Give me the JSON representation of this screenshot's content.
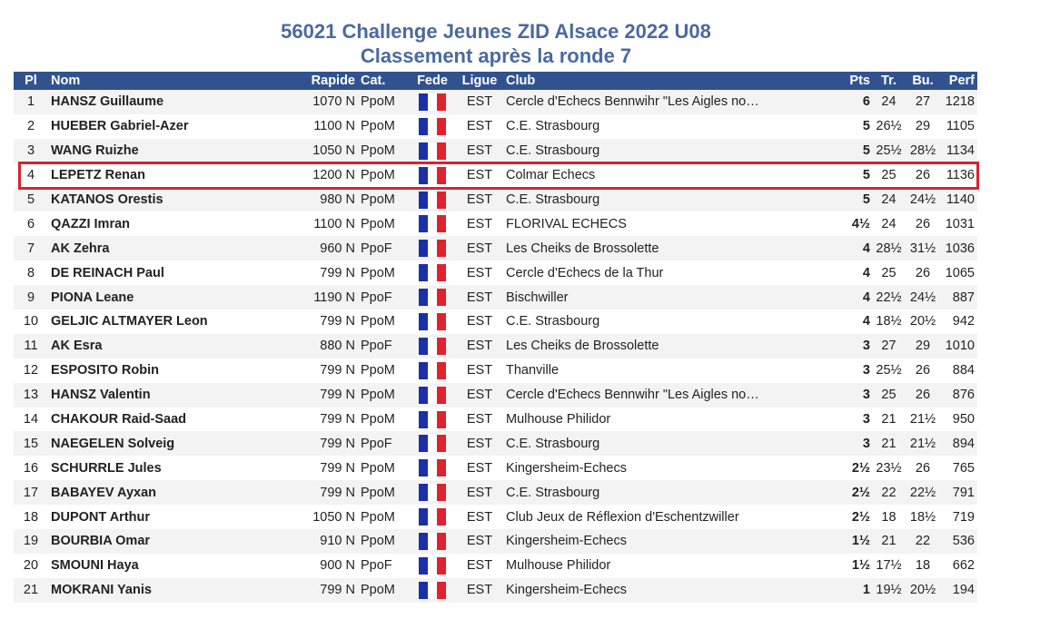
{
  "title_line1": "56021 Challenge Jeunes ZID Alsace 2022 U08",
  "title_line2": "Classement après la ronde 7",
  "headers": {
    "pl": "Pl",
    "nom": "Nom",
    "rapide": "Rapide",
    "cat": "Cat.",
    "fede": "Fede",
    "ligue": "Ligue",
    "club": "Club",
    "pts": "Pts",
    "tr": "Tr.",
    "bu": "Bu.",
    "perf": "Perf"
  },
  "flag_colors": [
    "#1a2fa8",
    "#ffffff",
    "#e0222d"
  ],
  "highlight_color": "#d8232f",
  "highlighted_rank": "4",
  "rows": [
    {
      "pl": "1",
      "nom": "HANSZ Guillaume",
      "rapide": "1070 N",
      "cat": "PpoM",
      "ligue": "EST",
      "club": "Cercle d'Echecs Bennwihr \"Les Aigles no…",
      "pts": "6",
      "tr": "24",
      "bu": "27",
      "perf": "1218"
    },
    {
      "pl": "2",
      "nom": "HUEBER Gabriel-Azer",
      "rapide": "1100 N",
      "cat": "PpoM",
      "ligue": "EST",
      "club": "C.E. Strasbourg",
      "pts": "5",
      "tr": "26½",
      "bu": "29",
      "perf": "1105"
    },
    {
      "pl": "3",
      "nom": "WANG Ruizhe",
      "rapide": "1050 N",
      "cat": "PpoM",
      "ligue": "EST",
      "club": "C.E. Strasbourg",
      "pts": "5",
      "tr": "25½",
      "bu": "28½",
      "perf": "1134"
    },
    {
      "pl": "4",
      "nom": "LEPETZ Renan",
      "rapide": "1200 N",
      "cat": "PpoM",
      "ligue": "EST",
      "club": "Colmar Echecs",
      "pts": "5",
      "tr": "25",
      "bu": "26",
      "perf": "1136"
    },
    {
      "pl": "5",
      "nom": "KATANOS Orestis",
      "rapide": "980 N",
      "cat": "PpoM",
      "ligue": "EST",
      "club": "C.E. Strasbourg",
      "pts": "5",
      "tr": "24",
      "bu": "24½",
      "perf": "1140"
    },
    {
      "pl": "6",
      "nom": "QAZZI Imran",
      "rapide": "1100 N",
      "cat": "PpoM",
      "ligue": "EST",
      "club": "FLORIVAL ECHECS",
      "pts": "4½",
      "tr": "24",
      "bu": "26",
      "perf": "1031"
    },
    {
      "pl": "7",
      "nom": "AK Zehra",
      "rapide": "960 N",
      "cat": "PpoF",
      "ligue": "EST",
      "club": "Les Cheiks de Brossolette",
      "pts": "4",
      "tr": "28½",
      "bu": "31½",
      "perf": "1036"
    },
    {
      "pl": "8",
      "nom": "DE REINACH Paul",
      "rapide": "799 N",
      "cat": "PpoM",
      "ligue": "EST",
      "club": "Cercle d'Echecs de la Thur",
      "pts": "4",
      "tr": "25",
      "bu": "26",
      "perf": "1065"
    },
    {
      "pl": "9",
      "nom": "PIONA Leane",
      "rapide": "1190 N",
      "cat": "PpoF",
      "ligue": "EST",
      "club": "Bischwiller",
      "pts": "4",
      "tr": "22½",
      "bu": "24½",
      "perf": "887"
    },
    {
      "pl": "10",
      "nom": "GELJIC ALTMAYER Leon",
      "rapide": "799 N",
      "cat": "PpoM",
      "ligue": "EST",
      "club": "C.E. Strasbourg",
      "pts": "4",
      "tr": "18½",
      "bu": "20½",
      "perf": "942"
    },
    {
      "pl": "11",
      "nom": "AK Esra",
      "rapide": "880 N",
      "cat": "PpoF",
      "ligue": "EST",
      "club": "Les Cheiks de Brossolette",
      "pts": "3",
      "tr": "27",
      "bu": "29",
      "perf": "1010"
    },
    {
      "pl": "12",
      "nom": "ESPOSITO Robin",
      "rapide": "799 N",
      "cat": "PpoM",
      "ligue": "EST",
      "club": "Thanville",
      "pts": "3",
      "tr": "25½",
      "bu": "26",
      "perf": "884"
    },
    {
      "pl": "13",
      "nom": "HANSZ Valentin",
      "rapide": "799 N",
      "cat": "PpoM",
      "ligue": "EST",
      "club": "Cercle d'Echecs Bennwihr \"Les Aigles no…",
      "pts": "3",
      "tr": "25",
      "bu": "26",
      "perf": "876"
    },
    {
      "pl": "14",
      "nom": "CHAKOUR Raid-Saad",
      "rapide": "799 N",
      "cat": "PpoM",
      "ligue": "EST",
      "club": "Mulhouse Philidor",
      "pts": "3",
      "tr": "21",
      "bu": "21½",
      "perf": "950"
    },
    {
      "pl": "15",
      "nom": "NAEGELEN Solveig",
      "rapide": "799 N",
      "cat": "PpoF",
      "ligue": "EST",
      "club": "C.E. Strasbourg",
      "pts": "3",
      "tr": "21",
      "bu": "21½",
      "perf": "894"
    },
    {
      "pl": "16",
      "nom": "SCHURRLE Jules",
      "rapide": "799 N",
      "cat": "PpoM",
      "ligue": "EST",
      "club": "Kingersheim-Echecs",
      "pts": "2½",
      "tr": "23½",
      "bu": "26",
      "perf": "765"
    },
    {
      "pl": "17",
      "nom": "BABAYEV Ayxan",
      "rapide": "799 N",
      "cat": "PpoM",
      "ligue": "EST",
      "club": "C.E. Strasbourg",
      "pts": "2½",
      "tr": "22",
      "bu": "22½",
      "perf": "791"
    },
    {
      "pl": "18",
      "nom": "DUPONT Arthur",
      "rapide": "1050 N",
      "cat": "PpoM",
      "ligue": "EST",
      "club": "Club Jeux de Réflexion d'Eschentzwiller",
      "pts": "2½",
      "tr": "18",
      "bu": "18½",
      "perf": "719"
    },
    {
      "pl": "19",
      "nom": "BOURBIA Omar",
      "rapide": "910 N",
      "cat": "PpoM",
      "ligue": "EST",
      "club": "Kingersheim-Echecs",
      "pts": "1½",
      "tr": "21",
      "bu": "22",
      "perf": "536"
    },
    {
      "pl": "20",
      "nom": "SMOUNI Haya",
      "rapide": "900 N",
      "cat": "PpoF",
      "ligue": "EST",
      "club": "Mulhouse Philidor",
      "pts": "1½",
      "tr": "17½",
      "bu": "18",
      "perf": "662"
    },
    {
      "pl": "21",
      "nom": "MOKRANI Yanis",
      "rapide": "799 N",
      "cat": "PpoM",
      "ligue": "EST",
      "club": "Kingersheim-Echecs",
      "pts": "1",
      "tr": "19½",
      "bu": "20½",
      "perf": "194"
    }
  ]
}
